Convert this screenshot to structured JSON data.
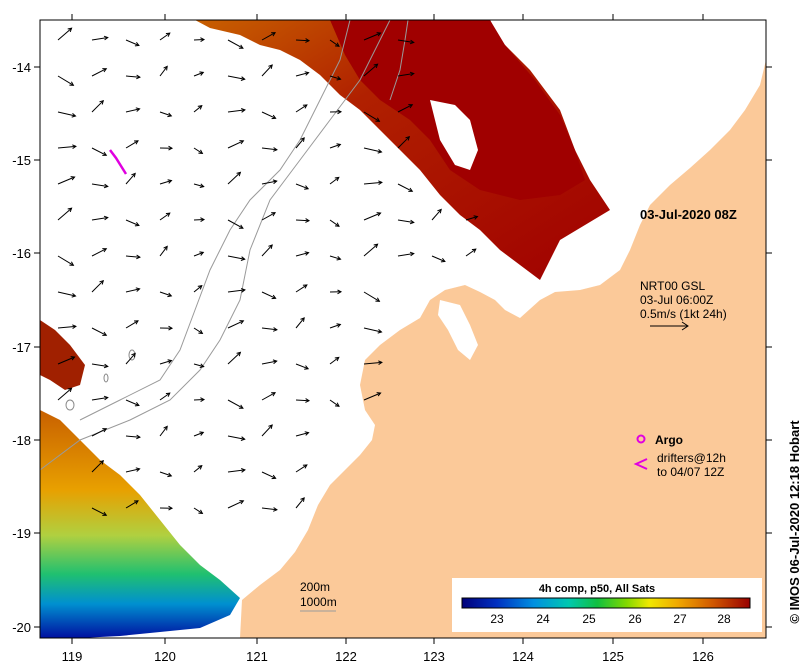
{
  "map": {
    "timestamp": "03-Jul-2020 08Z",
    "current_product": {
      "line1": "NRT00 GSL",
      "line2": "03-Jul 06:00Z",
      "line3": "0.5m/s (1kt 24h)"
    },
    "legend": {
      "argo_label": "Argo",
      "drifters_line1": "drifters@12h",
      "drifters_line2": "to 04/07 12Z"
    },
    "isobaths": {
      "line1": "200m",
      "line2": "1000m"
    },
    "colorbar": {
      "title": "4h comp, p50, All Sats",
      "ticks": [
        "23",
        "24",
        "25",
        "26",
        "27",
        "28"
      ]
    },
    "credit": "© IMOS 06-Jul-2020 12:18 Hobart",
    "lat_ticks": [
      "-14",
      "-15",
      "-16",
      "-17",
      "-18",
      "-19",
      "-20"
    ],
    "lon_ticks": [
      "119",
      "120",
      "121",
      "122",
      "123",
      "124",
      "125",
      "126"
    ],
    "colors": {
      "land": "#fbc999",
      "water_bg": "#ffffff",
      "sst_warm": "#a00000",
      "drifter": "#e000e0",
      "isobath": "#9a9a9a"
    }
  }
}
